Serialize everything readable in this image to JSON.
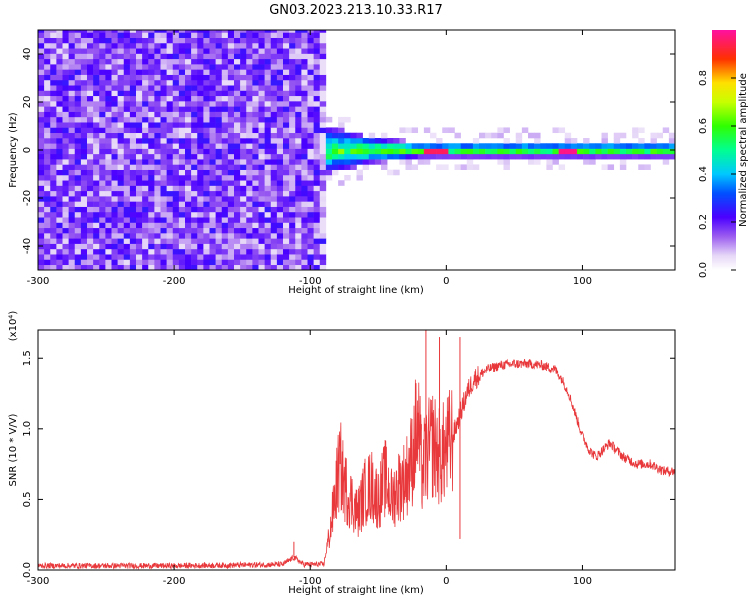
{
  "title": "GN03.2023.213.10.33.R17",
  "chart_data": [
    {
      "type": "heatmap",
      "xlabel": "Height of straight line (km)",
      "ylabel": "Frequency (Hz)",
      "xlim": [
        -300,
        168
      ],
      "ylim": [
        -50,
        50
      ],
      "xticks": [
        -300,
        -200,
        -100,
        0,
        100
      ],
      "yticks": [
        -40,
        -20,
        0,
        20,
        40
      ],
      "noise_region_x": [
        -300,
        -87
      ],
      "signal_band": {
        "x_start": -88,
        "center_hz": 0,
        "width_hz": [
          {
            "x": -88,
            "w": 10
          },
          {
            "x": -60,
            "w": 6
          },
          {
            "x": -20,
            "w": 3
          },
          {
            "x": 160,
            "w": 3
          }
        ],
        "peak_segments": [
          {
            "x": [
              -15,
              0
            ],
            "amp": 0.95
          },
          {
            "x": [
              82,
              96
            ],
            "amp": 0.98
          }
        ]
      },
      "colorbar": {
        "label": "Normalized spectral amplitude",
        "range": [
          0,
          1
        ],
        "ticks": [
          0.0,
          0.2,
          0.4,
          0.6,
          0.8
        ],
        "tick_labels": [
          "0.0",
          "0.2",
          "0.4",
          "0.6",
          "0.8"
        ],
        "colormap": "rainbow (white→purple→blue→cyan→green→yellow→red→magenta)"
      },
      "grid": false
    },
    {
      "type": "line",
      "xlabel": "Height of straight line (km)",
      "ylabel": "SNR (10 * V/V)",
      "y_multiplier": "(x10⁴)",
      "xlim": [
        -300,
        168
      ],
      "ylim": [
        0,
        17000
      ],
      "xticks": [
        -300,
        -200,
        -100,
        0,
        100
      ],
      "yticks": [
        0,
        5000,
        10000,
        15000
      ],
      "ytick_labels": [
        "0.0",
        "0.5",
        "1.0",
        "1.5"
      ],
      "series": [
        {
          "color": "#e8383b",
          "x": [
            -300,
            -250,
            -200,
            -150,
            -120,
            -112,
            -105,
            -90,
            -85,
            -82,
            -80,
            -78,
            -75,
            -70,
            -65,
            -60,
            -55,
            -50,
            -45,
            -40,
            -35,
            -30,
            -25,
            -22,
            -20,
            -18,
            -15,
            -10,
            -5,
            0,
            5,
            10,
            15,
            20,
            30,
            40,
            50,
            60,
            70,
            80,
            85,
            90,
            95,
            100,
            105,
            110,
            115,
            120,
            130,
            140,
            150,
            160,
            168
          ],
          "values": [
            300,
            300,
            300,
            350,
            400,
            900,
            400,
            400,
            3000,
            5000,
            6500,
            7500,
            6000,
            5000,
            4000,
            5500,
            6000,
            5000,
            6500,
            5000,
            6000,
            6500,
            8000,
            10000,
            9500,
            7000,
            8000,
            9000,
            8000,
            8500,
            9500,
            11000,
            12500,
            13500,
            14200,
            14500,
            14600,
            14600,
            14500,
            14200,
            13500,
            12500,
            11000,
            9500,
            8500,
            8000,
            8500,
            9000,
            8000,
            7500,
            7500,
            7000,
            7000
          ],
          "spikes": [
            {
              "x": -78,
              "y": 9000
            },
            {
              "x": -15,
              "y": 17500
            },
            {
              "x": -5,
              "y": 16500
            },
            {
              "x": 10,
              "y": 16500
            },
            {
              "x": 10,
              "y": 2200
            },
            {
              "x": -112,
              "y": 2000
            }
          ]
        }
      ],
      "grid": false
    }
  ]
}
